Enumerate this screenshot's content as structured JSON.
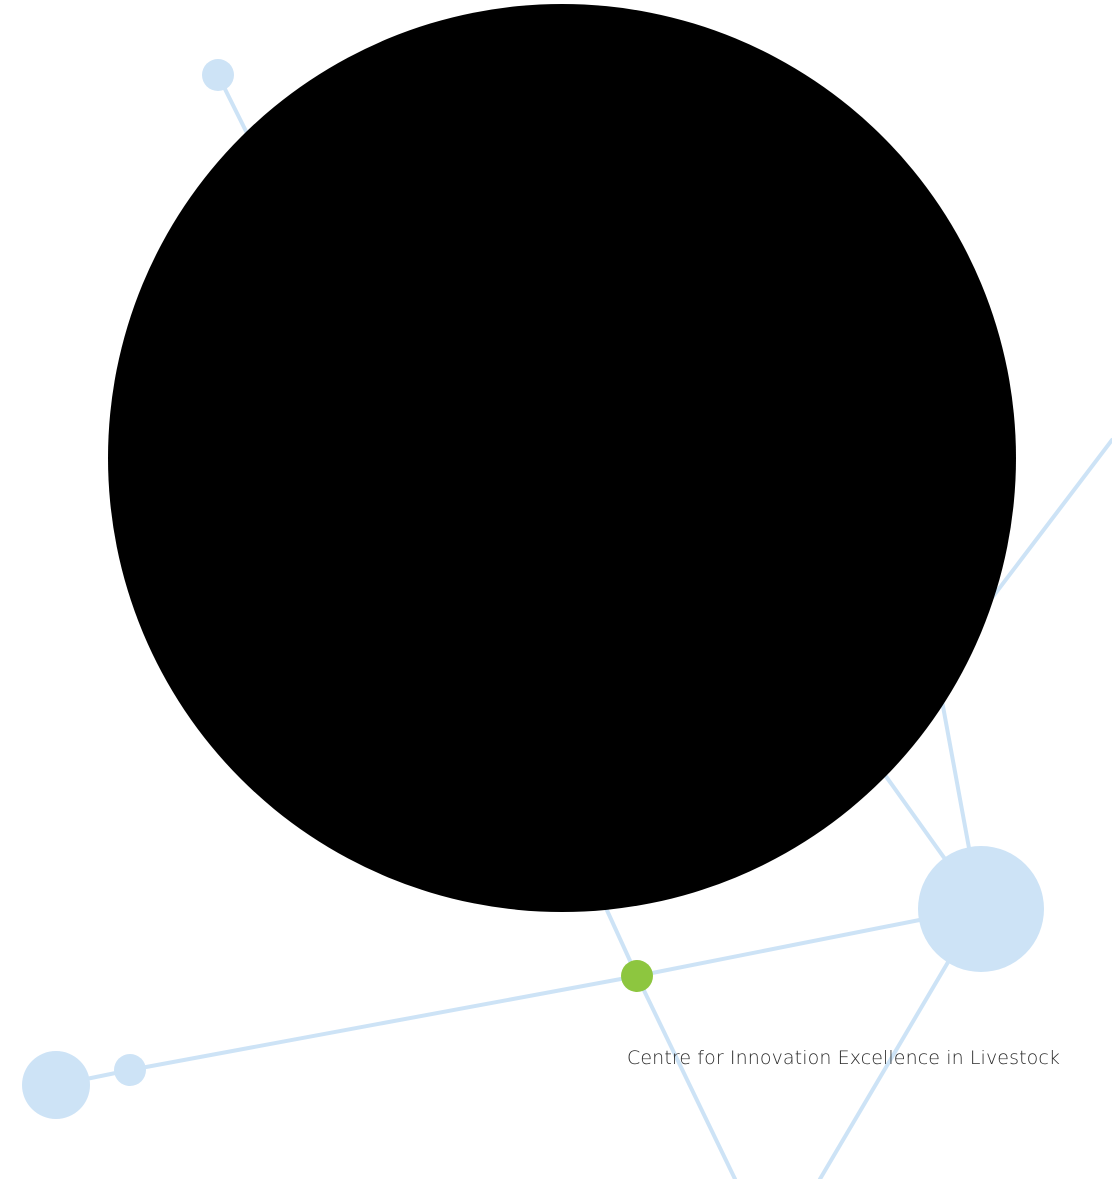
{
  "palette": {
    "background": "#ffffff",
    "network_line": "#cde3f6",
    "network_node": "#cde3f6",
    "accent_node": "#8dc63f",
    "cover_circle": "#000000",
    "footer_text": "#2b2b2b"
  },
  "footer": {
    "organisation": "Centre for Innovation Excellence in Livestock"
  }
}
